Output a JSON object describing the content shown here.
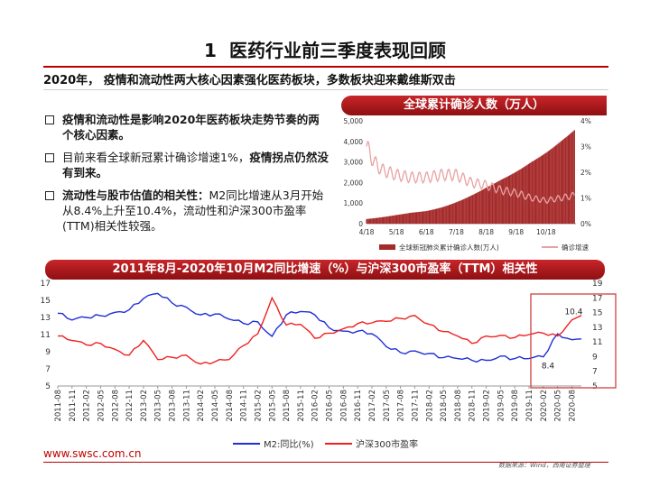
{
  "header": {
    "number": "1",
    "title": "医药行业前三季度表现回顾",
    "subtitle": "2020年， 疫情和流动性两大核心因素强化医药板块，多数板块迎来戴维斯双击"
  },
  "bullets": [
    {
      "bold": "疫情和流动性是影响2020年医药板块走势节奏的两个核心因素。",
      "normal": "",
      "bold2": ""
    },
    {
      "bold": "",
      "normal": "目前来看全球新冠累计确诊增速1%，",
      "bold2": "疫情拐点仍然没有到来。"
    },
    {
      "bold": "流动性与股市估值的相关性：",
      "normal": "M2同比增速从3月开始从8.4%上升至10.4%，流动性和沪深300市盈率(TTM)相关性较强。",
      "bold2": ""
    }
  ],
  "colors": {
    "accent": "#b40000",
    "cases": "#a52a2a",
    "growth": "#e8a2a2",
    "m2": "#1f2fd6",
    "pe": "#f02020"
  },
  "chart_data": [
    {
      "type": "bar",
      "title": "全球累计确诊人数（万人）",
      "x_ticks": [
        "4/18",
        "5/18",
        "6/18",
        "7/18",
        "8/18",
        "9/18",
        "10/18"
      ],
      "y_left_ticks": [
        "0",
        "1,000",
        "2,000",
        "3,000",
        "4,000",
        "5,000"
      ],
      "y_right_ticks": [
        "0%",
        "1%",
        "2%",
        "3%",
        "4%"
      ],
      "ylim_left": [
        0,
        5000
      ],
      "ylim_right": [
        0,
        0.04
      ],
      "series": [
        {
          "name": "全球新冠肺炎累计确诊人数(万人)",
          "axis": "left",
          "months": [
            4.0,
            4.5,
            5.0,
            5.5,
            6.0,
            6.5,
            7.0,
            7.5,
            8.0,
            8.5,
            9.0,
            9.5,
            10.0,
            10.5,
            10.95
          ],
          "values": [
            224,
            310,
            422,
            534,
            612,
            785,
            1041,
            1366,
            1754,
            2136,
            2520,
            2986,
            3446,
            4008,
            4550
          ]
        },
        {
          "name": "确诊增速",
          "axis": "right",
          "months": [
            4.0,
            4.25,
            4.5,
            4.75,
            5.0,
            5.5,
            6.0,
            6.5,
            7.0,
            7.5,
            8.0,
            8.5,
            9.0,
            9.5,
            10.0,
            10.5,
            10.95
          ],
          "values": [
            0.03,
            0.024,
            0.021,
            0.02,
            0.019,
            0.018,
            0.018,
            0.019,
            0.019,
            0.016,
            0.015,
            0.013,
            0.012,
            0.01,
            0.009,
            0.01,
            0.011
          ]
        }
      ],
      "legend": "bottom"
    },
    {
      "type": "line",
      "title": "2011年8月-2020年10月M2同比增速（%）与沪深300市盈率（TTM）相关性",
      "x_ticks": [
        "2011-08",
        "2011-11",
        "2012-02",
        "2012-05",
        "2012-08",
        "2012-11",
        "2013-02",
        "2013-05",
        "2013-08",
        "2013-11",
        "2014-02",
        "2014-05",
        "2014-08",
        "2014-11",
        "2015-02",
        "2015-05",
        "2015-08",
        "2015-11",
        "2016-02",
        "2016-05",
        "2016-08",
        "2016-11",
        "2017-02",
        "2017-05",
        "2017-08",
        "2017-11",
        "2018-02",
        "2018-05",
        "2018-08",
        "2018-11",
        "2019-02",
        "2019-05",
        "2019-08",
        "2019-11",
        "2020-02",
        "2020-05",
        "2020-08"
      ],
      "y_left_ticks": [
        "5",
        "7",
        "9",
        "11",
        "13",
        "15",
        "17"
      ],
      "y_right_ticks": [
        "5",
        "7",
        "9",
        "11",
        "13",
        "15",
        "17",
        "19"
      ],
      "ylim_left": [
        5,
        17
      ],
      "ylim_right": [
        5,
        19
      ],
      "annotations": [
        "8.4",
        "10.4"
      ],
      "series": [
        {
          "name": "M2:同比(%)",
          "axis": "left",
          "x": [
            "2011-08",
            "2011-11",
            "2012-02",
            "2012-05",
            "2012-08",
            "2012-11",
            "2013-02",
            "2013-05",
            "2013-08",
            "2013-11",
            "2014-02",
            "2014-05",
            "2014-08",
            "2014-11",
            "2015-02",
            "2015-05",
            "2015-08",
            "2015-11",
            "2016-02",
            "2016-05",
            "2016-08",
            "2016-11",
            "2017-02",
            "2017-05",
            "2017-08",
            "2017-11",
            "2018-02",
            "2018-05",
            "2018-08",
            "2018-11",
            "2019-02",
            "2019-05",
            "2019-08",
            "2019-11",
            "2020-02",
            "2020-05",
            "2020-08",
            "2020-10"
          ],
          "values": [
            13.5,
            12.7,
            13.0,
            13.2,
            13.6,
            13.9,
            15.2,
            15.8,
            14.7,
            14.2,
            13.3,
            13.4,
            12.8,
            12.3,
            12.5,
            10.8,
            13.3,
            13.7,
            13.3,
            11.8,
            11.4,
            11.4,
            11.1,
            9.6,
            8.9,
            9.1,
            8.8,
            8.3,
            8.2,
            8.0,
            8.0,
            8.5,
            8.2,
            8.2,
            8.4,
            11.1,
            10.4,
            10.5
          ]
        },
        {
          "name": "沪深300市盈率",
          "axis": "right",
          "x": [
            "2011-08",
            "2011-11",
            "2012-02",
            "2012-05",
            "2012-08",
            "2012-11",
            "2013-02",
            "2013-05",
            "2013-08",
            "2013-11",
            "2014-02",
            "2014-05",
            "2014-08",
            "2014-11",
            "2015-02",
            "2015-05",
            "2015-08",
            "2015-11",
            "2016-02",
            "2016-05",
            "2016-08",
            "2016-11",
            "2017-02",
            "2017-05",
            "2017-08",
            "2017-11",
            "2018-02",
            "2018-05",
            "2018-08",
            "2018-11",
            "2019-02",
            "2019-05",
            "2019-08",
            "2019-11",
            "2020-02",
            "2020-05",
            "2020-08",
            "2020-10"
          ],
          "values": [
            11.8,
            11.2,
            10.6,
            10.8,
            10.0,
            9.2,
            11.2,
            8.6,
            8.9,
            9.2,
            8.0,
            8.3,
            8.6,
            10.5,
            12.1,
            17.0,
            13.3,
            13.4,
            11.5,
            12.2,
            12.8,
            13.5,
            13.6,
            13.8,
            14.2,
            14.6,
            13.4,
            12.4,
            11.8,
            10.8,
            11.8,
            11.9,
            11.6,
            12.0,
            12.2,
            11.8,
            14.0,
            14.6
          ]
        }
      ],
      "legend": "bottom"
    }
  ],
  "footer": {
    "url": "www.swsc.com.cn",
    "source": "数据来源：Wind，西南证券整理"
  }
}
